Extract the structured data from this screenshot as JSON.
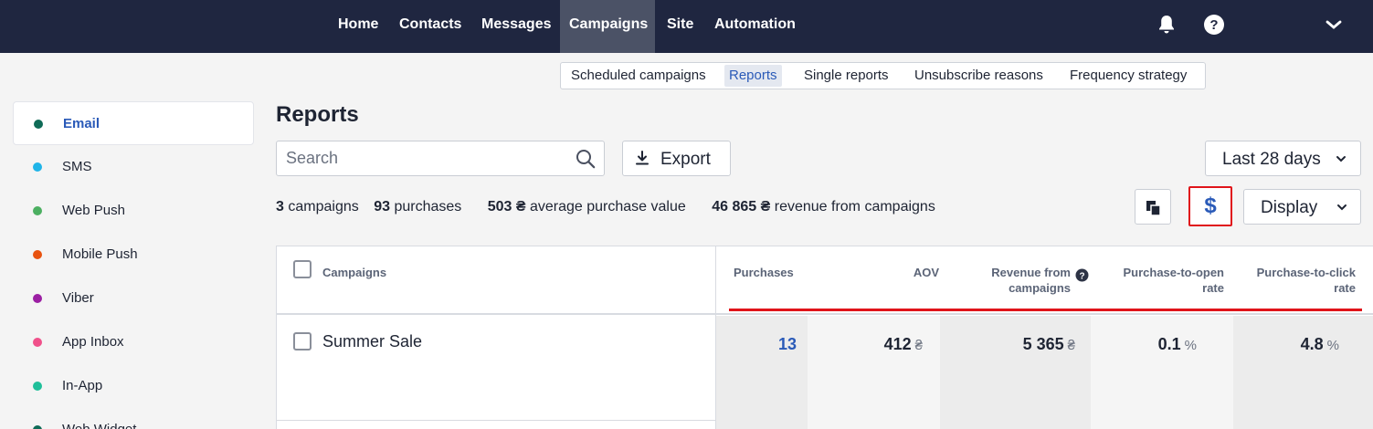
{
  "topnav": {
    "items": [
      {
        "label": "Home"
      },
      {
        "label": "Contacts"
      },
      {
        "label": "Messages"
      },
      {
        "label": "Campaigns",
        "active": true
      },
      {
        "label": "Site"
      },
      {
        "label": "Automation"
      }
    ],
    "icons": [
      "bell-icon",
      "help-icon",
      "chevron-down-icon"
    ]
  },
  "subtabs": {
    "items": [
      {
        "label": "Scheduled campaigns"
      },
      {
        "label": "Reports",
        "active": true
      },
      {
        "label": "Single reports"
      },
      {
        "label": "Unsubscribe reasons"
      },
      {
        "label": "Frequency strategy"
      }
    ]
  },
  "sidebar": {
    "items": [
      {
        "label": "Email",
        "color": "#0f6b57",
        "active": true
      },
      {
        "label": "SMS",
        "color": "#1fb4e8"
      },
      {
        "label": "Web Push",
        "color": "#4caf61"
      },
      {
        "label": "Mobile Push",
        "color": "#e8520f"
      },
      {
        "label": "Viber",
        "color": "#9b1fa3"
      },
      {
        "label": "App Inbox",
        "color": "#f0508a"
      },
      {
        "label": "In-App",
        "color": "#1fbf9a"
      },
      {
        "label": "Web Widget",
        "color": "#0f6b57"
      }
    ]
  },
  "page": {
    "title": "Reports"
  },
  "search": {
    "placeholder": "Search"
  },
  "toolbar": {
    "export_label": "Export",
    "period_label": "Last 28 days",
    "display_label": "Display",
    "currency_symbol": "$"
  },
  "stats": {
    "campaigns_count": "3",
    "campaigns_label": "campaigns",
    "purchases_count": "93",
    "purchases_label": "purchases",
    "avg_value": "503 ₴",
    "avg_label": "average purchase value",
    "revenue_value": "46 865 ₴",
    "revenue_label": "revenue from campaigns"
  },
  "table": {
    "columns": {
      "campaigns": "Campaigns",
      "purchases": "Purchases",
      "aov": "AOV",
      "revenue_line1": "Revenue from",
      "revenue_line2": "campaigns",
      "pto_line1": "Purchase-to-open",
      "pto_line2": "rate",
      "ptc_line1": "Purchase-to-click",
      "ptc_line2": "rate"
    },
    "rows": [
      {
        "name": "Summer Sale",
        "purchases": "13",
        "aov": "412",
        "aov_unit": "₴",
        "revenue": "5 365",
        "revenue_unit": "₴",
        "pto_rate": "0.1",
        "pto_unit": "%",
        "ptc_rate": "4.8",
        "ptc_unit": "%"
      }
    ]
  },
  "colors": {
    "topbar": "#1f2640",
    "accent": "#2a5ab8",
    "highlight_red": "#e0141a"
  }
}
